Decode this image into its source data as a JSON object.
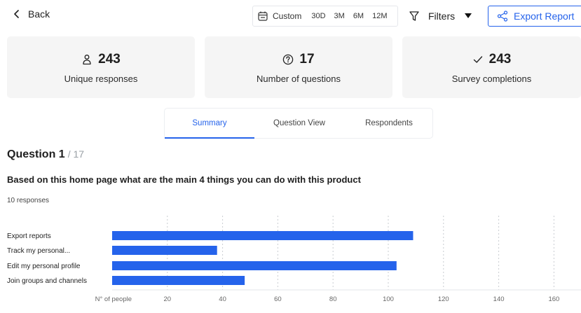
{
  "header": {
    "back_label": "Back",
    "range_options": [
      "Custom",
      "30D",
      "3M",
      "6M",
      "12M"
    ],
    "filters_label": "Filters",
    "export_label": "Export Report"
  },
  "stats": [
    {
      "icon": "user-icon",
      "value": "243",
      "label": "Unique responses"
    },
    {
      "icon": "question-circle-icon",
      "value": "17",
      "label": "Number of questions"
    },
    {
      "icon": "check-icon",
      "value": "243",
      "label": "Survey completions"
    }
  ],
  "tabs": [
    {
      "label": "Summary",
      "active": true
    },
    {
      "label": "Question View",
      "active": false
    },
    {
      "label": "Respondents",
      "active": false
    }
  ],
  "question": {
    "title": "Question 1",
    "of": "/ 17",
    "text": "Based on this home page what are the main 4 things you can do with this product",
    "responses": "10 responses"
  },
  "colors": {
    "accent": "#2563eb",
    "bar": "#2563eb",
    "card": "#f5f5f5"
  },
  "chart_data": {
    "type": "bar",
    "orientation": "horizontal",
    "categories": [
      "Export reports",
      "Track my personal...",
      "Edit my personal profile",
      "Join groups and channels"
    ],
    "values": [
      109,
      38,
      103,
      48
    ],
    "xlabel": "N° of people",
    "xticks": [
      20,
      40,
      60,
      80,
      100,
      120,
      140,
      160
    ],
    "xlim": [
      0,
      170
    ],
    "grid": "vertical-dashed"
  }
}
